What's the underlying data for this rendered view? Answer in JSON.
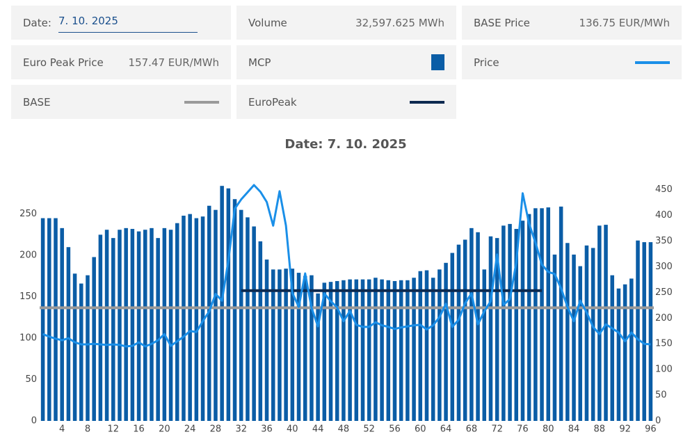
{
  "controls": {
    "date_label": "Date:",
    "date_value": "7. 10. 2025"
  },
  "cards": [
    {
      "label": "Volume",
      "value": "32,597.625 MWh"
    },
    {
      "label": "BASE Price",
      "value": "136.75 EUR/MWh"
    },
    {
      "label": "Euro Peak Price",
      "value": "157.47 EUR/MWh"
    }
  ],
  "chart_data": {
    "type": "combo",
    "title": "Date: 7. 10. 2025",
    "x": [
      1,
      2,
      3,
      4,
      5,
      6,
      7,
      8,
      9,
      10,
      11,
      12,
      13,
      14,
      15,
      16,
      17,
      18,
      19,
      20,
      21,
      22,
      23,
      24,
      25,
      26,
      27,
      28,
      29,
      30,
      31,
      32,
      33,
      34,
      35,
      36,
      37,
      38,
      39,
      40,
      41,
      42,
      43,
      44,
      45,
      46,
      47,
      48,
      49,
      50,
      51,
      52,
      53,
      54,
      55,
      56,
      57,
      58,
      59,
      60,
      61,
      62,
      63,
      64,
      65,
      66,
      67,
      68,
      69,
      70,
      71,
      72,
      73,
      74,
      75,
      76,
      77,
      78,
      79,
      80,
      81,
      82,
      83,
      84,
      85,
      86,
      87,
      88,
      89,
      90,
      91,
      92,
      93,
      94,
      95,
      96
    ],
    "xlim": [
      0.5,
      96.5
    ],
    "xticks": [
      4,
      8,
      12,
      16,
      20,
      24,
      28,
      32,
      36,
      40,
      44,
      48,
      52,
      56,
      60,
      64,
      68,
      72,
      76,
      80,
      84,
      88,
      92,
      96
    ],
    "ylim": [
      0,
      285
    ],
    "yticks": [
      0,
      50,
      100,
      150,
      200,
      250
    ],
    "y2lim": [
      0,
      459
    ],
    "y2ticks": [
      0,
      50,
      100,
      150,
      200,
      250,
      300,
      350,
      400,
      450
    ],
    "series": [
      {
        "name": "MCP",
        "type": "bar",
        "color": "#0b5da6",
        "values": [
          245,
          245,
          245,
          233,
          210,
          178,
          166,
          176,
          198,
          225,
          231,
          221,
          231,
          233,
          232,
          229,
          231,
          233,
          221,
          233,
          231,
          239,
          248,
          250,
          245,
          247,
          260,
          255,
          284,
          281,
          268,
          255,
          246,
          235,
          217,
          195,
          183,
          183,
          184,
          184,
          179,
          175,
          176,
          154,
          167,
          168,
          169,
          170,
          171,
          171,
          171,
          171,
          173,
          171,
          170,
          169,
          170,
          170,
          173,
          181,
          182,
          173,
          183,
          191,
          203,
          213,
          219,
          233,
          228,
          183,
          223,
          221,
          236,
          238,
          232,
          242,
          250,
          257,
          257,
          258,
          201,
          259,
          215,
          201,
          187,
          212,
          209,
          236,
          237,
          176,
          160,
          165,
          172,
          218,
          216,
          216
        ]
      },
      {
        "name": "Price",
        "type": "line",
        "axis": "y2",
        "color": "#1a8fe8",
        "values": [
          169,
          164,
          160,
          157,
          161,
          153,
          149,
          149,
          150,
          149,
          148,
          149,
          148,
          145,
          146,
          153,
          145,
          150,
          157,
          169,
          146,
          155,
          164,
          175,
          173,
          194,
          213,
          247,
          234,
          312,
          413,
          431,
          445,
          459,
          446,
          426,
          380,
          447,
          380,
          249,
          222,
          287,
          220,
          184,
          248,
          233,
          221,
          194,
          214,
          187,
          183,
          183,
          192,
          186,
          183,
          179,
          182,
          184,
          186,
          187,
          178,
          186,
          202,
          228,
          183,
          197,
          229,
          248,
          188,
          213,
          233,
          324,
          226,
          237,
          308,
          443,
          384,
          347,
          304,
          290,
          286,
          258,
          222,
          194,
          234,
          211,
          183,
          169,
          188,
          180,
          172,
          155,
          172,
          159,
          150,
          149
        ]
      },
      {
        "name": "BASE",
        "type": "hline",
        "color": "#9a9a9a",
        "value": 136.75
      },
      {
        "name": "EuroPeak",
        "type": "hline",
        "color": "#0d2a50",
        "value": 157.47,
        "x_range": [
          32,
          79
        ]
      }
    ]
  }
}
